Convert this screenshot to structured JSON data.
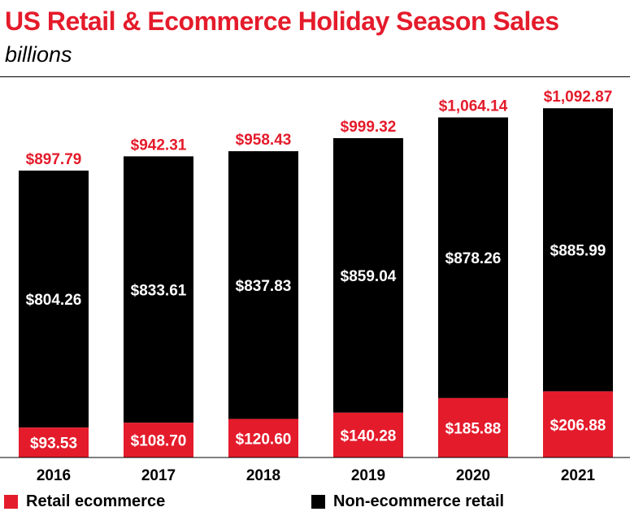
{
  "chart_data": {
    "type": "bar",
    "stacked": true,
    "title": "US Retail & Ecommerce Holiday Season Sales",
    "subtitle": "billions",
    "categories": [
      "2016",
      "2017",
      "2018",
      "2019",
      "2020",
      "2021"
    ],
    "series": [
      {
        "name": "Retail ecommerce",
        "color": "#e41b2b",
        "values": [
          93.53,
          108.7,
          120.6,
          140.28,
          185.88,
          206.88
        ],
        "labels": [
          "$93.53",
          "$108.70",
          "$120.60",
          "$140.28",
          "$185.88",
          "$206.88"
        ]
      },
      {
        "name": "Non-ecommerce retail",
        "color": "#000000",
        "values": [
          804.26,
          833.61,
          837.83,
          859.04,
          878.26,
          885.99
        ],
        "labels": [
          "$804.26",
          "$833.61",
          "$837.83",
          "$859.04",
          "$878.26",
          "$885.99"
        ]
      }
    ],
    "totals": [
      897.79,
      942.31,
      958.43,
      999.32,
      1064.14,
      1092.87
    ],
    "total_labels": [
      "$897.79",
      "$942.31",
      "$958.43",
      "$999.32",
      "$1,064.14",
      "$1,092.87"
    ],
    "ylim": [
      0,
      1190
    ],
    "legend_position": "bottom"
  }
}
